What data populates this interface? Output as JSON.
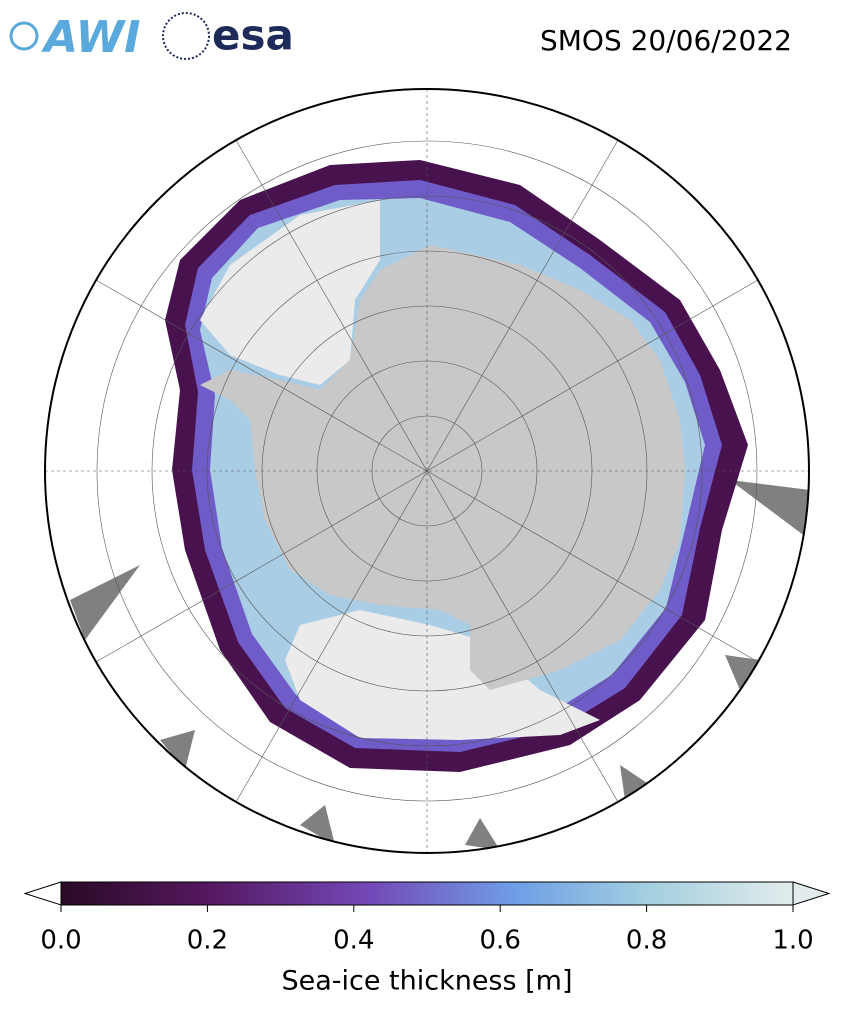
{
  "header": {
    "logos": [
      "AWI",
      "esa"
    ],
    "title": "SMOS 20/06/2022"
  },
  "colorbar": {
    "range": [
      0,
      1
    ],
    "ticks": [
      {
        "value": 0,
        "label": "0.0"
      },
      {
        "value": 0.2,
        "label": "0.2"
      },
      {
        "value": 0.4,
        "label": "0.4"
      },
      {
        "value": 0.6,
        "label": "0.6"
      },
      {
        "value": 0.8,
        "label": "0.8"
      },
      {
        "value": 1,
        "label": "1.0"
      }
    ],
    "label": "Sea-ice thickness [m]"
  }
}
